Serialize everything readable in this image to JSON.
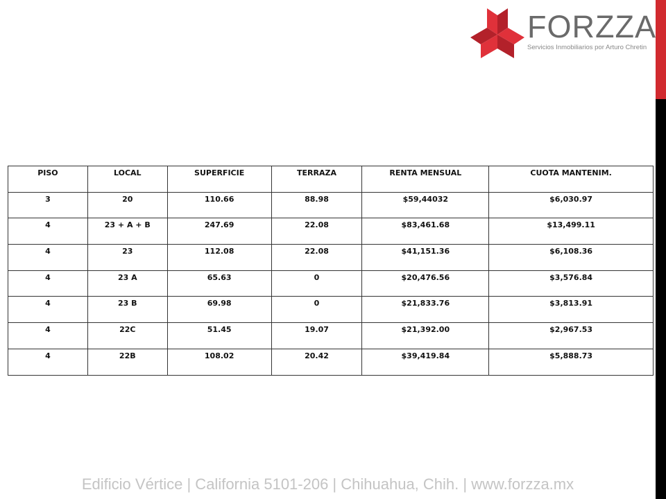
{
  "brand": {
    "name": "FORZZA",
    "tagline": "Servicios Inmobiliarios por Arturo Chretin",
    "accent": "#d12a2f"
  },
  "table": {
    "headers": [
      "PISO",
      "LOCAL",
      "SUPERFICIE",
      "TERRAZA",
      "RENTA MENSUAL",
      "CUOTA MANTENIM."
    ],
    "rows": [
      [
        "3",
        "20",
        "110.66",
        "88.98",
        "$59,44032",
        "$6,030.97"
      ],
      [
        "4",
        "23 + A + B",
        "247.69",
        "22.08",
        "$83,461.68",
        "$13,499.11"
      ],
      [
        "4",
        "23",
        "112.08",
        "22.08",
        "$41,151.36",
        "$6,108.36"
      ],
      [
        "4",
        "23 A",
        "65.63",
        "0",
        "$20,476.56",
        "$3,576.84"
      ],
      [
        "4",
        "23 B",
        "69.98",
        "0",
        "$21,833.76",
        "$3,813.91"
      ],
      [
        "4",
        "22C",
        "51.45",
        "19.07",
        "$21,392.00",
        "$2,967.53"
      ],
      [
        "4",
        "22B",
        "108.02",
        "20.42",
        "$39,419.84",
        "$5,888.73"
      ]
    ]
  },
  "footer": "Edificio Vértice | California 5101-206 | Chihuahua, Chih. | www.forzza.mx"
}
